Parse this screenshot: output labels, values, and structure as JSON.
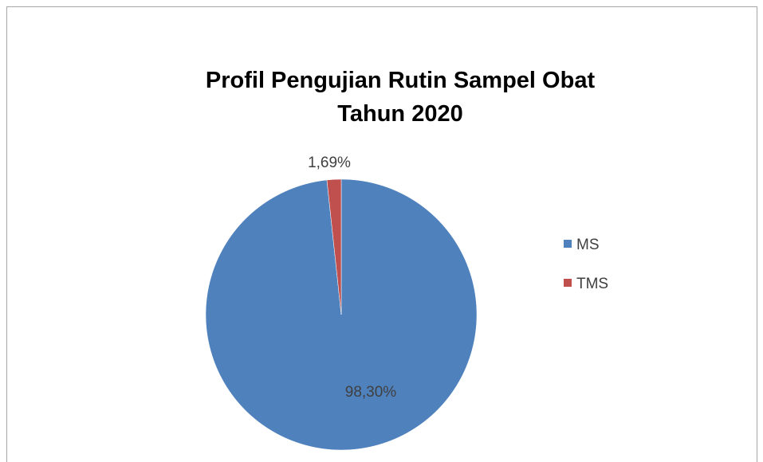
{
  "chart_data": {
    "type": "pie",
    "title_lines": [
      "Profil Pengujian Rutin Sampel Obat",
      "Tahun 2020"
    ],
    "slices": [
      {
        "label": "MS",
        "value": 98.3,
        "value_label": "98,30%",
        "color": "#4F81BD"
      },
      {
        "label": "TMS",
        "value": 1.69,
        "value_label": "1,69%",
        "color": "#C0504D"
      }
    ],
    "legend_position": "right",
    "frame_color": "#A6A6A6"
  }
}
